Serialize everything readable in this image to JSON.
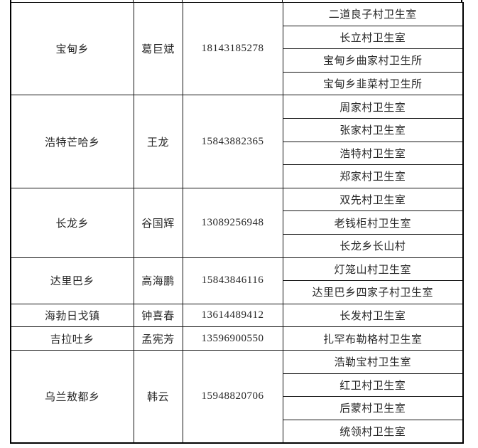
{
  "colors": {
    "background": "#ffffff",
    "border": "#000000",
    "text": "#262626"
  },
  "table": {
    "sections": [
      {
        "township": "宝甸乡",
        "contact": "葛巨斌",
        "phone": "18143185278",
        "clinics": [
          "二道良子村卫生室",
          "长立村卫生室",
          "宝甸乡曲家村卫生所",
          "宝甸乡韭菜村卫生所"
        ]
      },
      {
        "township": "浩特芒哈乡",
        "contact": "王龙",
        "phone": "15843882365",
        "clinics": [
          "周家村卫生室",
          "张家村卫生室",
          "浩特村卫生室",
          "郑家村卫生室"
        ]
      },
      {
        "township": "长龙乡",
        "contact": "谷国辉",
        "phone": "13089256948",
        "clinics": [
          "双先村卫生室",
          "老钱柜村卫生室",
          "长龙乡长山村"
        ]
      },
      {
        "township": "达里巴乡",
        "contact": "高海鹏",
        "phone": "15843846116",
        "clinics": [
          "灯笼山村卫生室",
          "达里巴乡四家子村卫生室"
        ]
      },
      {
        "township": "海勃日戈镇",
        "contact": "钟喜春",
        "phone": "13614489412",
        "clinics": [
          "长发村卫生室"
        ]
      },
      {
        "township": "吉拉吐乡",
        "contact": "孟宪芳",
        "phone": "13596900550",
        "clinics": [
          "扎罕布勒格村卫生室"
        ]
      },
      {
        "township": "乌兰敖都乡",
        "contact": "韩云",
        "phone": "15948820706",
        "clinics": [
          "浩勒宝村卫生室",
          "红卫村卫生室",
          "后蒙村卫生室",
          "统领村卫生室"
        ]
      }
    ]
  }
}
